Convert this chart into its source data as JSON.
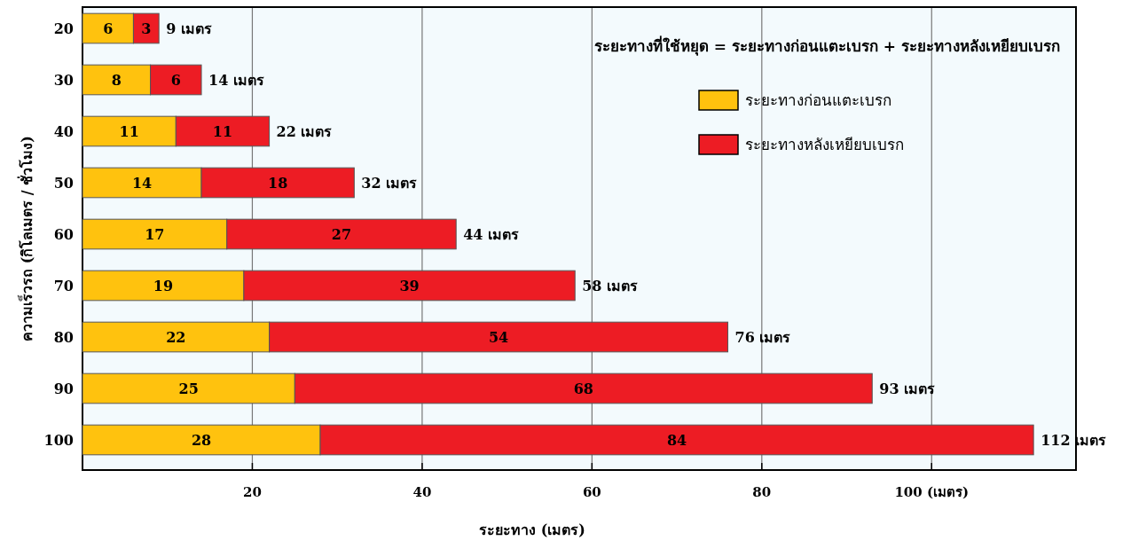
{
  "chart_data": {
    "type": "bar",
    "orientation": "horizontal",
    "stacked": true,
    "xlabel": "ระยะทาง  (เมตร)",
    "ylabel": "ความเร็วรถ (กิโลเมตร / ชั่วโมง)",
    "categories": [
      "20",
      "30",
      "40",
      "50",
      "60",
      "70",
      "80",
      "90",
      "100"
    ],
    "series": [
      {
        "name": "ระยะทางก่อนแตะเบรก",
        "color": "#ffc20e",
        "values": [
          6,
          8,
          11,
          14,
          17,
          19,
          22,
          25,
          28
        ]
      },
      {
        "name": "ระยะทางหลังเหยียบเบรก",
        "color": "#ed1c24",
        "values": [
          3,
          6,
          11,
          18,
          27,
          39,
          54,
          68,
          84
        ]
      }
    ],
    "data_labels": true,
    "totals": [
      "9 เมตร",
      "14 เมตร",
      "22 เมตร",
      "32 เมตร",
      "44 เมตร",
      "58 เมตร",
      "76 เมตร",
      "93 เมตร",
      "112 เมตร"
    ],
    "xlim": [
      0,
      117
    ],
    "xticks": [
      20,
      40,
      60,
      80,
      {
        "value": 100,
        "label": "100 (เมตร)"
      }
    ],
    "grid": "x",
    "legend": "top right",
    "annotations": [
      "ระยะทางที่ใช้หยุด = ระยะทางก่อนแตะเบรก + ระยะทางหลังเหยียบเบรก"
    ]
  }
}
